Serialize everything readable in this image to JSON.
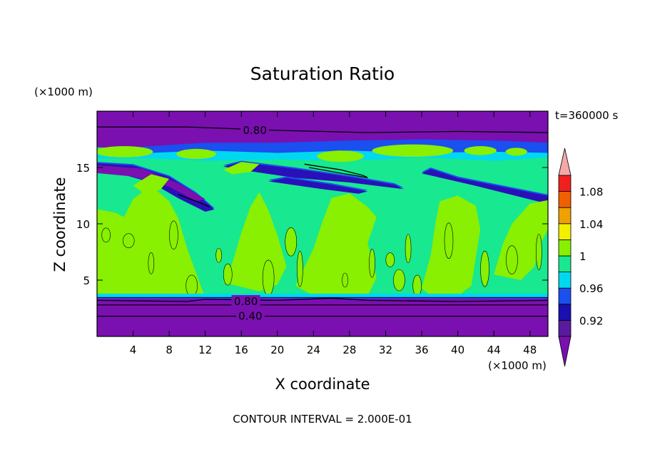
{
  "chart_data": {
    "type": "contour",
    "title": "Saturation Ratio",
    "xlabel": "X coordinate",
    "ylabel": "Z coordinate",
    "x_unit": "(×1000 m)",
    "y_unit": "(×1000 m)",
    "time_label": "t=360000 s",
    "footer": "CONTOUR INTERVAL = 2.000E-01",
    "xlim": [
      0,
      50
    ],
    "ylim": [
      0,
      20
    ],
    "x_ticks": [
      4,
      8,
      12,
      16,
      20,
      24,
      28,
      32,
      36,
      40,
      44,
      48
    ],
    "x_tick_labels": [
      "4",
      "8",
      "12",
      "16",
      "20",
      "24",
      "28",
      "32",
      "36",
      "40",
      "44",
      "48"
    ],
    "y_ticks": [
      5,
      10,
      15
    ],
    "y_tick_labels": [
      "5",
      "10",
      "15"
    ],
    "contour_labels": [
      {
        "text": "0.80",
        "x": 17.5,
        "y": 18.3
      },
      {
        "text": "0.80",
        "x": 16.5,
        "y": 3.1
      },
      {
        "text": "0.40",
        "x": 17.0,
        "y": 1.8
      }
    ],
    "colorbar": {
      "levels": [
        0.9,
        0.92,
        0.94,
        0.96,
        0.98,
        1.0,
        1.02,
        1.04,
        1.06,
        1.08,
        1.1
      ],
      "colors": [
        "#5a1aa0",
        "#1a0fb0",
        "#1a4ff0",
        "#00d8f0",
        "#18e890",
        "#88f000",
        "#f0f000",
        "#f0a000",
        "#f06000",
        "#f02020"
      ],
      "under_color": "#7a10b0",
      "over_color": "#f4a8a8",
      "tick_labels": [
        "0.92",
        "0.96",
        "1",
        "1.04",
        "1.08"
      ],
      "tick_values": [
        0.92,
        0.96,
        1.0,
        1.04,
        1.08
      ]
    },
    "colors": {
      "purple": "#7a10b0",
      "indigo": "#2a10b8",
      "blue": "#1a4ff0",
      "cyan": "#00d8f0",
      "green": "#18e890",
      "lime": "#88f000"
    }
  }
}
